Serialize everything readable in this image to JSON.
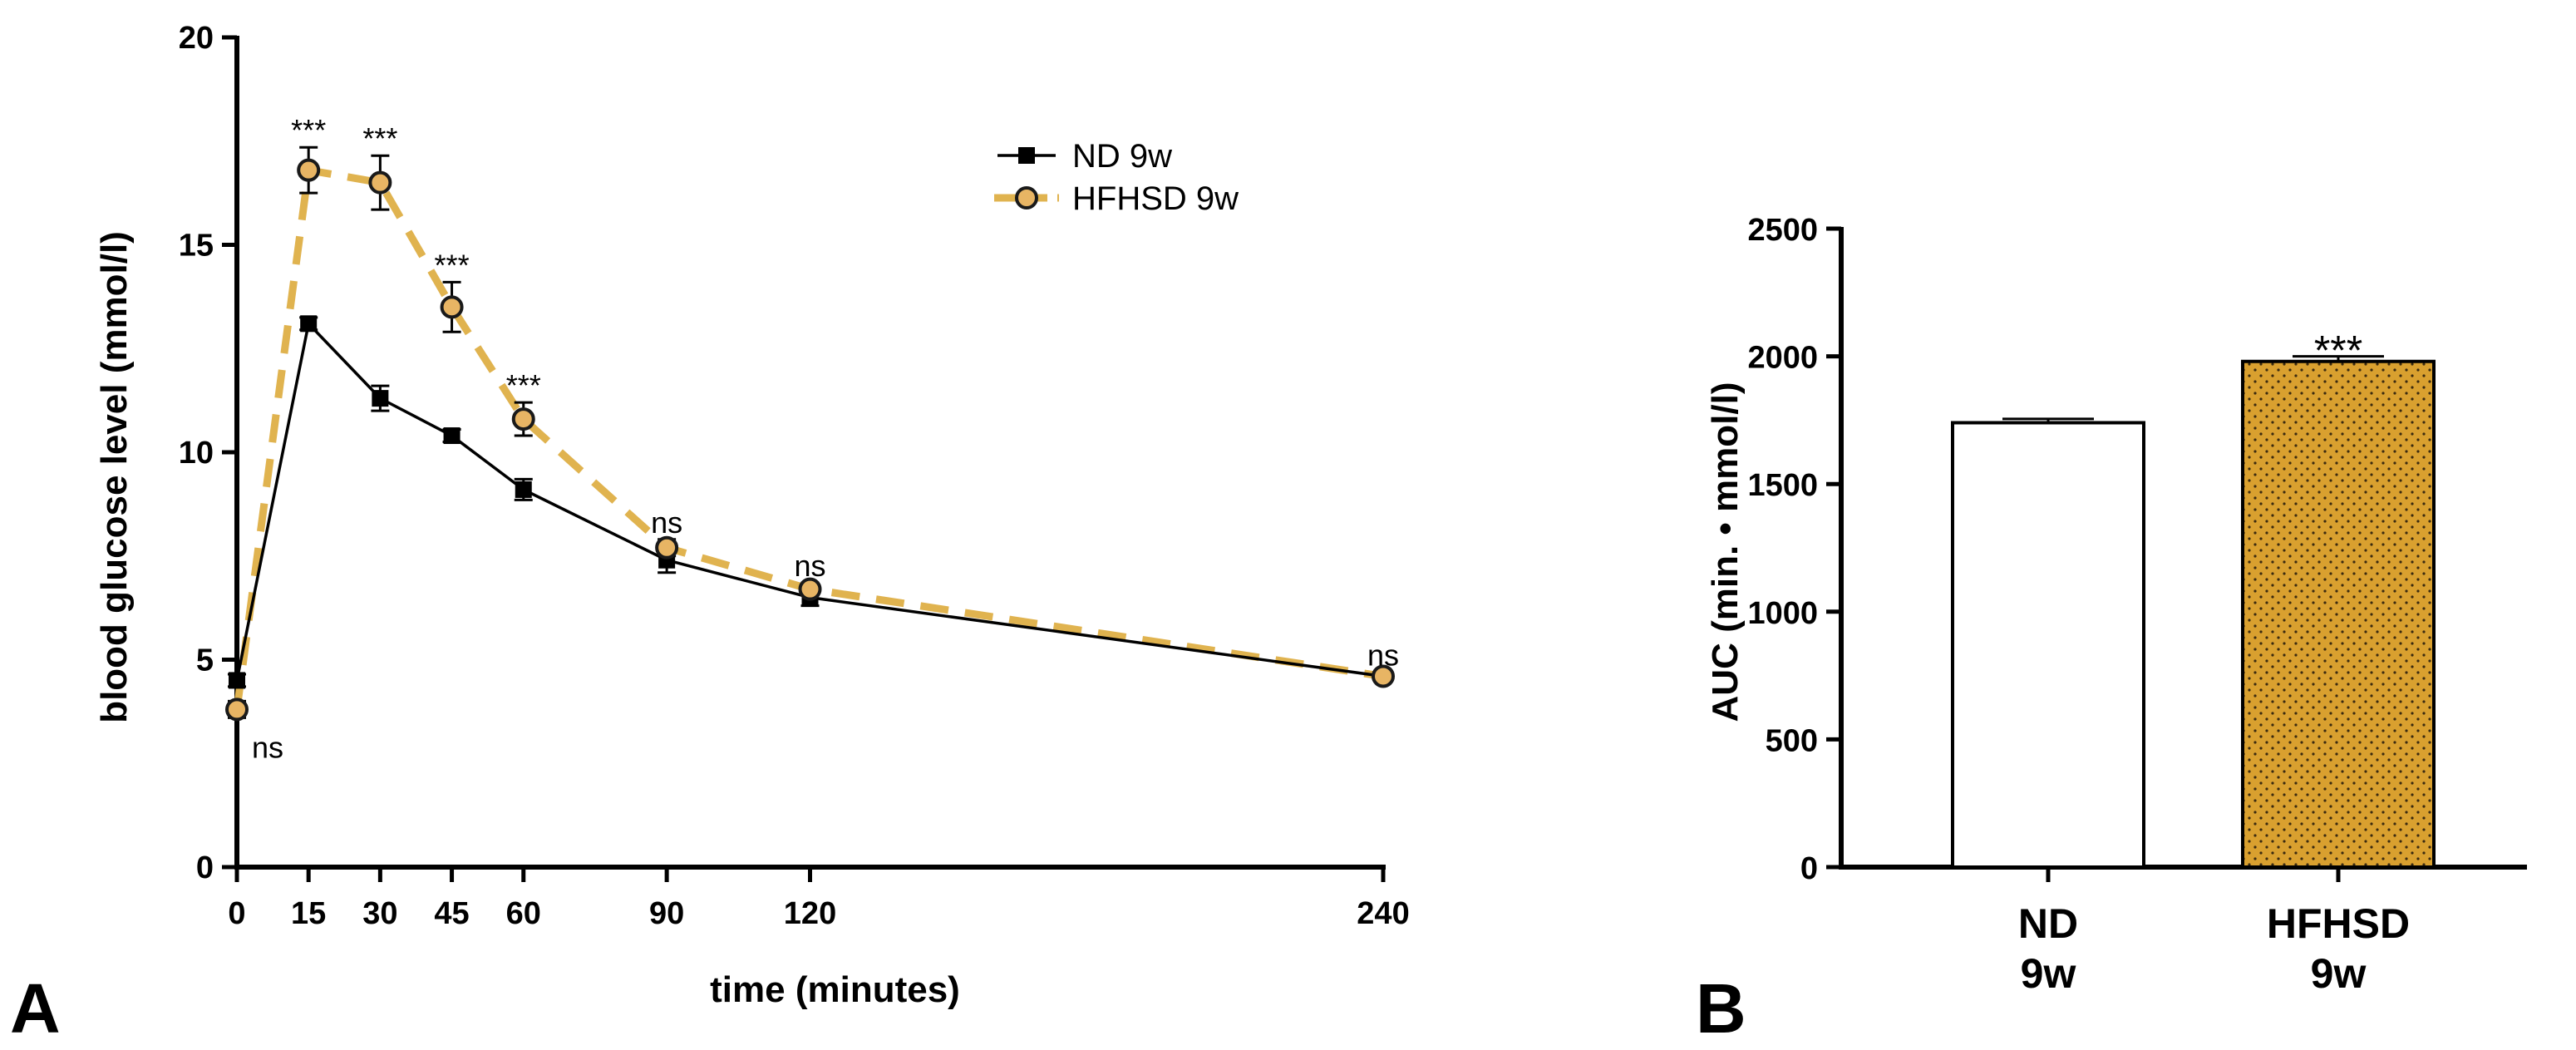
{
  "panels": {
    "a": {
      "letter": "A"
    },
    "b": {
      "letter": "B"
    }
  },
  "colors": {
    "hfhsd": "#e0b34f",
    "hfhsd_marker_fill": "#e8b564",
    "hfhsd_bar_fill": "#d9a02f",
    "nd": "#000000",
    "nd_bar_fill": "#ffffff"
  },
  "chart_data": [
    {
      "type": "line",
      "panel": "A",
      "xlabel": "time (minutes)",
      "ylabel": "blood glucose level (mmol/l)",
      "xlim": [
        0,
        240
      ],
      "ylim": [
        0,
        20
      ],
      "x_ticks": [
        0,
        15,
        30,
        45,
        60,
        90,
        120,
        240
      ],
      "y_ticks": [
        0,
        5,
        10,
        15,
        20
      ],
      "x": [
        0,
        15,
        30,
        45,
        60,
        90,
        120,
        240
      ],
      "legend_position": "top-right",
      "series": [
        {
          "name": "ND 9w",
          "key": "nd",
          "marker": "square",
          "line": "solid",
          "values": [
            4.5,
            13.1,
            11.3,
            10.4,
            9.1,
            7.4,
            6.5,
            4.6
          ],
          "errors": [
            0.15,
            0.15,
            0.3,
            0.15,
            0.25,
            0.3,
            0.2,
            0.1
          ]
        },
        {
          "name": "HFHSD 9w",
          "key": "hfhsd",
          "marker": "circle",
          "line": "dashed",
          "values": [
            3.8,
            16.8,
            16.5,
            13.5,
            10.8,
            7.7,
            6.7,
            4.6
          ],
          "errors": [
            0.2,
            0.55,
            0.65,
            0.6,
            0.4,
            0.2,
            0.15,
            0.1
          ]
        }
      ],
      "annotations": [
        {
          "x": 0,
          "y": 3.8,
          "text": "ns",
          "placement": "below-right"
        },
        {
          "x": 15,
          "y": 17.35,
          "text": "***",
          "placement": "above"
        },
        {
          "x": 30,
          "y": 17.15,
          "text": "***",
          "placement": "above"
        },
        {
          "x": 45,
          "y": 14.1,
          "text": "***",
          "placement": "above"
        },
        {
          "x": 60,
          "y": 11.2,
          "text": "***",
          "placement": "above"
        },
        {
          "x": 90,
          "y": 7.9,
          "text": "ns",
          "placement": "above"
        },
        {
          "x": 120,
          "y": 6.85,
          "text": "ns",
          "placement": "above"
        },
        {
          "x": 240,
          "y": 4.7,
          "text": "ns",
          "placement": "above"
        }
      ]
    },
    {
      "type": "bar",
      "panel": "B",
      "ylabel": "AUC (min. • mmol/l)",
      "ylim": [
        0,
        2500
      ],
      "y_ticks": [
        0,
        500,
        1000,
        1500,
        2000,
        2500
      ],
      "categories": [
        "ND\n9w",
        "HFHSD\n9w"
      ],
      "category_lines": [
        [
          "ND",
          "9w"
        ],
        [
          "HFHSD",
          "9w"
        ]
      ],
      "values": [
        1740,
        1980
      ],
      "errors": [
        15,
        20
      ],
      "keys": [
        "nd",
        "hfhsd"
      ],
      "annotations": [
        {
          "category": 1,
          "text": "***"
        }
      ]
    }
  ]
}
